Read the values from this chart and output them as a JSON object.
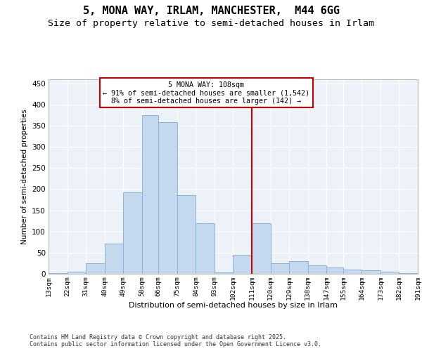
{
  "title1": "5, MONA WAY, IRLAM, MANCHESTER,  M44 6GG",
  "title2": "Size of property relative to semi-detached houses in Irlam",
  "xlabel": "Distribution of semi-detached houses by size in Irlam",
  "ylabel": "Number of semi-detached properties",
  "footer": "Contains HM Land Registry data © Crown copyright and database right 2025.\nContains public sector information licensed under the Open Government Licence v3.0.",
  "bin_edges": [
    13,
    22,
    31,
    40,
    49,
    58,
    66,
    75,
    84,
    93,
    102,
    111,
    120,
    129,
    138,
    147,
    155,
    164,
    173,
    182,
    191
  ],
  "values": [
    2,
    5,
    25,
    72,
    192,
    375,
    358,
    185,
    120,
    3,
    45,
    120,
    25,
    30,
    20,
    15,
    10,
    8,
    5,
    2
  ],
  "bar_color": "#c5d9ee",
  "bar_edge_color": "#8ab4d8",
  "vline_x": 111,
  "vline_color": "#cc0000",
  "ylim": [
    0,
    460
  ],
  "yticks": [
    0,
    50,
    100,
    150,
    200,
    250,
    300,
    350,
    400,
    450
  ],
  "annotation_text": "5 MONA WAY: 108sqm\n← 91% of semi-detached houses are smaller (1,542)\n8% of semi-detached houses are larger (142) →",
  "annotation_box_edgecolor": "#cc0000",
  "bg_color": "#edf1f8",
  "grid_color": "#ffffff",
  "title1_fontsize": 11,
  "title2_fontsize": 9.5
}
